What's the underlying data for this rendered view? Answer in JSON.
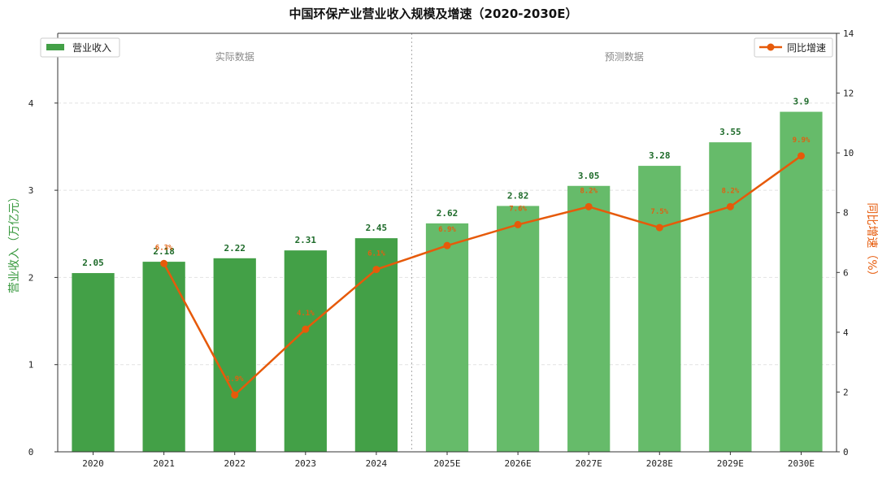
{
  "chart_data": {
    "type": "bar+line",
    "title": "中国环保产业营业收入规模及增速（2020-2030E）",
    "categories": [
      "2020",
      "2021",
      "2022",
      "2023",
      "2024",
      "2025E",
      "2026E",
      "2027E",
      "2028E",
      "2029E",
      "2030E"
    ],
    "series": [
      {
        "name": "营业收入",
        "type": "bar",
        "axis": "left",
        "values": [
          2.05,
          2.18,
          2.22,
          2.31,
          2.45,
          2.62,
          2.82,
          3.05,
          3.28,
          3.55,
          3.9
        ],
        "value_labels": [
          "2.05",
          "2.18",
          "2.22",
          "2.31",
          "2.45",
          "2.62",
          "2.82",
          "3.05",
          "3.28",
          "3.55",
          "3.9"
        ]
      },
      {
        "name": "同比增速",
        "type": "line",
        "axis": "right",
        "values": [
          null,
          6.3,
          1.9,
          4.1,
          6.1,
          6.9,
          7.6,
          8.2,
          7.5,
          8.2,
          9.9
        ],
        "value_labels": [
          "",
          "6.3%",
          "1.9%",
          "4.1%",
          "6.1%",
          "6.9%",
          "7.6%",
          "8.2%",
          "7.5%",
          "8.2%",
          "9.9%"
        ]
      }
    ],
    "ylabel": "营业收入（万亿元）",
    "y2label": "同比增速（%）",
    "ylim": [
      0,
      4.8
    ],
    "y2lim": [
      0,
      14
    ],
    "yticks": [
      "0",
      "1",
      "2",
      "3",
      "4"
    ],
    "y2ticks": [
      "0",
      "2",
      "4",
      "6",
      "8",
      "10",
      "12",
      "14"
    ],
    "regions": [
      {
        "label": "实际数据",
        "categories": [
          "2020",
          "2021",
          "2022",
          "2023",
          "2024"
        ]
      },
      {
        "label": "预测数据",
        "categories": [
          "2025E",
          "2026E",
          "2027E",
          "2028E",
          "2029E",
          "2030E"
        ]
      }
    ],
    "legend": {
      "left_placement": "top-left",
      "right_placement": "top-right"
    },
    "grid": "horizontal dashed",
    "colors": {
      "actual_bar": "#43a047",
      "forecast_bar": "#66bb6a",
      "line": "#e65a0a",
      "left_axis_label": "#3a9a40",
      "right_axis_label": "#e65a0a"
    }
  }
}
